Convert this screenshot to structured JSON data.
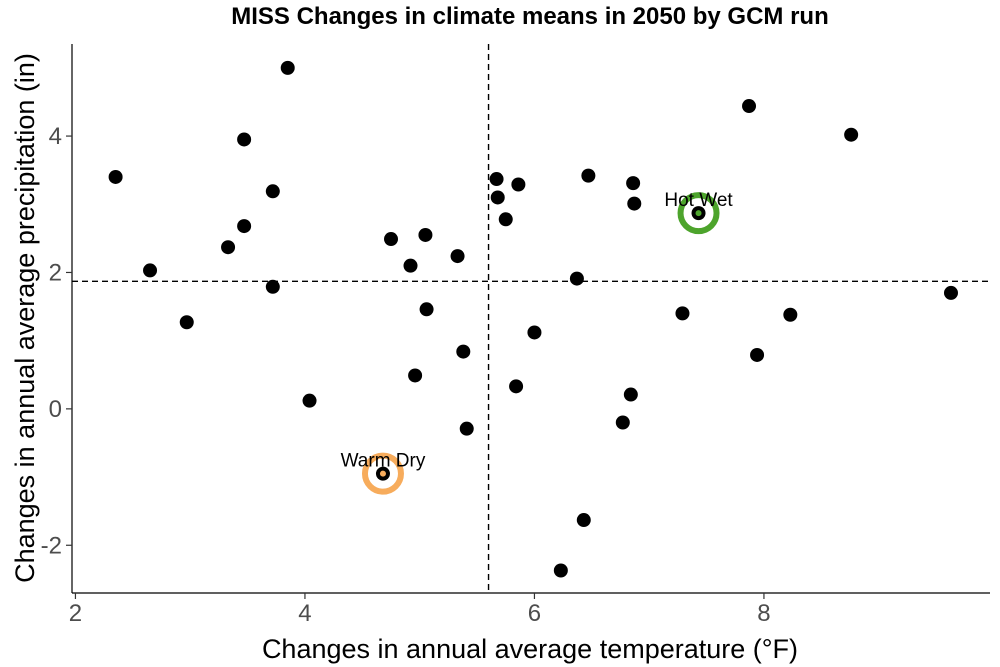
{
  "chart_data": {
    "type": "scatter",
    "title": "MISS Changes in climate means in 2050 by GCM run",
    "xlabel": "Changes in annual average temperature (°F)",
    "ylabel": "Changes in annual average precipitation (in)",
    "xlim": [
      1.97,
      9.97
    ],
    "ylim": [
      -2.7,
      5.35
    ],
    "xticks": [
      2,
      4,
      6,
      8
    ],
    "yticks": [
      -2,
      0,
      2,
      4
    ],
    "reference_lines": {
      "x": 5.6,
      "y": 1.87
    },
    "point_color": "#000000",
    "points": [
      {
        "x": 2.35,
        "y": 3.4
      },
      {
        "x": 2.65,
        "y": 2.03
      },
      {
        "x": 2.97,
        "y": 1.27
      },
      {
        "x": 3.33,
        "y": 2.37
      },
      {
        "x": 3.47,
        "y": 3.95
      },
      {
        "x": 3.47,
        "y": 2.68
      },
      {
        "x": 3.72,
        "y": 3.19
      },
      {
        "x": 3.72,
        "y": 1.79
      },
      {
        "x": 3.85,
        "y": 5.0
      },
      {
        "x": 4.04,
        "y": 0.12
      },
      {
        "x": 4.68,
        "y": -0.95
      },
      {
        "x": 4.75,
        "y": 2.49
      },
      {
        "x": 4.92,
        "y": 2.1
      },
      {
        "x": 4.96,
        "y": 0.49
      },
      {
        "x": 5.05,
        "y": 2.55
      },
      {
        "x": 5.06,
        "y": 1.46
      },
      {
        "x": 5.33,
        "y": 2.24
      },
      {
        "x": 5.38,
        "y": 0.84
      },
      {
        "x": 5.41,
        "y": -0.29
      },
      {
        "x": 5.67,
        "y": 3.37
      },
      {
        "x": 5.68,
        "y": 3.1
      },
      {
        "x": 5.75,
        "y": 2.78
      },
      {
        "x": 5.84,
        "y": 0.33
      },
      {
        "x": 5.86,
        "y": 3.29
      },
      {
        "x": 6.0,
        "y": 1.12
      },
      {
        "x": 6.23,
        "y": -2.37
      },
      {
        "x": 6.37,
        "y": 1.91
      },
      {
        "x": 6.43,
        "y": -1.63
      },
      {
        "x": 6.47,
        "y": 3.42
      },
      {
        "x": 6.77,
        "y": -0.2
      },
      {
        "x": 6.84,
        "y": 0.21
      },
      {
        "x": 6.86,
        "y": 3.31
      },
      {
        "x": 6.87,
        "y": 3.01
      },
      {
        "x": 7.29,
        "y": 1.4
      },
      {
        "x": 7.43,
        "y": 2.87
      },
      {
        "x": 7.87,
        "y": 4.44
      },
      {
        "x": 7.94,
        "y": 0.79
      },
      {
        "x": 8.23,
        "y": 1.38
      },
      {
        "x": 8.76,
        "y": 4.02
      },
      {
        "x": 9.63,
        "y": 1.7
      }
    ],
    "highlights": [
      {
        "label": "Hot Wet",
        "x": 7.43,
        "y": 2.87,
        "ring_color": "#4da42c",
        "center_color": "#4da42c"
      },
      {
        "label": "Warm Dry",
        "x": 4.68,
        "y": -0.95,
        "ring_color": "#f7ac5c",
        "center_color": "#f7ac5c"
      }
    ]
  }
}
